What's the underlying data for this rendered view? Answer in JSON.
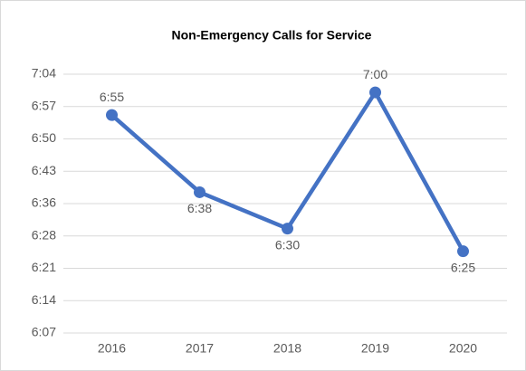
{
  "chart_data": {
    "type": "line",
    "title": "Non-Emergency Calls for Service",
    "categories": [
      "2016",
      "2017",
      "2018",
      "2019",
      "2020"
    ],
    "series": [
      {
        "name": "Non-Emergency Calls for Service",
        "color": "#4472c4",
        "values": [
          415,
          398,
          390,
          420,
          385
        ],
        "value_labels": [
          "6:55",
          "6:38",
          "6:30",
          "7:00",
          "6:25"
        ]
      }
    ],
    "ylim": [
      367,
      424
    ],
    "yticks": [
      {
        "value": 367,
        "label": "6:07"
      },
      {
        "value": 374.125,
        "label": "6:14"
      },
      {
        "value": 381.25,
        "label": "6:21"
      },
      {
        "value": 388.375,
        "label": "6:28"
      },
      {
        "value": 395.5,
        "label": "6:36"
      },
      {
        "value": 402.625,
        "label": "6:43"
      },
      {
        "value": 409.75,
        "label": "6:50"
      },
      {
        "value": 416.875,
        "label": "6:57"
      },
      {
        "value": 424,
        "label": "7:04"
      }
    ],
    "grid": true
  }
}
